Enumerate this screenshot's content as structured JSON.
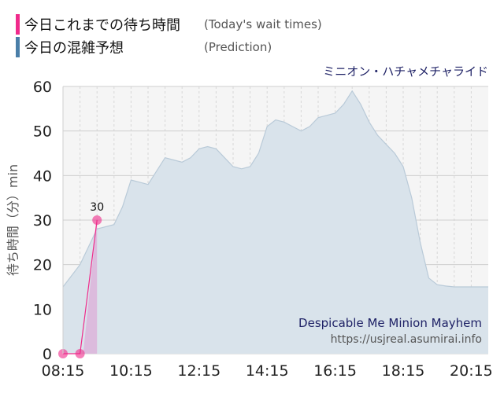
{
  "legend": {
    "today_label": "今日これまでの待ち時間",
    "today_sub": "(Today's wait times)",
    "pred_label": "今日の混雑予想",
    "pred_sub": "(Prediction)"
  },
  "attraction_name": "ミニオン・ハチャメチャライド",
  "footer": {
    "ride_name": "Despicable Me Minion Mayhem",
    "source_url": "https://usjreal.asumirai.info"
  },
  "colors": {
    "today": "#f02a8b",
    "prediction": "#4a7ea8",
    "prediction_fill": "#d9e3eb",
    "today_fill": "#dcb6dc",
    "plot_bg": "#f5f5f5"
  },
  "chart_data": {
    "type": "area",
    "xlabel": "",
    "ylabel": "待ち時間（分）min",
    "ylim": [
      0,
      60
    ],
    "yticks": [
      0,
      10,
      20,
      30,
      40,
      50,
      60
    ],
    "xlim": [
      "08:15",
      "20:45"
    ],
    "xticks": [
      "08:15",
      "10:15",
      "12:15",
      "14:15",
      "16:15",
      "18:15",
      "20:15"
    ],
    "grid": true,
    "series": [
      {
        "name": "今日の混雑予想",
        "x": [
          "08:15",
          "08:45",
          "09:15",
          "09:30",
          "09:45",
          "10:00",
          "10:15",
          "10:30",
          "10:45",
          "11:00",
          "11:15",
          "11:30",
          "11:45",
          "12:00",
          "12:15",
          "12:30",
          "12:45",
          "13:00",
          "13:15",
          "13:30",
          "13:45",
          "14:00",
          "14:15",
          "14:30",
          "14:45",
          "15:00",
          "15:15",
          "15:30",
          "15:45",
          "16:00",
          "16:15",
          "16:30",
          "16:45",
          "17:00",
          "17:15",
          "17:30",
          "17:45",
          "18:00",
          "18:15",
          "18:30",
          "18:45",
          "19:00",
          "19:15",
          "19:30",
          "19:45",
          "20:00",
          "20:15",
          "20:30",
          "20:45"
        ],
        "values": [
          15,
          20,
          28,
          28.5,
          29,
          33,
          39,
          38.5,
          38,
          41,
          44,
          43.5,
          43,
          44,
          46,
          46.5,
          46,
          44,
          42,
          41.5,
          42,
          45,
          51,
          52.5,
          52,
          51,
          50,
          51,
          53,
          53.5,
          54,
          56,
          59,
          56,
          52,
          49,
          47,
          45,
          42,
          35,
          25,
          17,
          15.5,
          15.2,
          15,
          15,
          15,
          15,
          15
        ]
      },
      {
        "name": "今日これまでの待ち時間",
        "x": [
          "08:15",
          "08:45",
          "09:15"
        ],
        "values": [
          0,
          0,
          30
        ],
        "data_labels": [
          "",
          "",
          "30"
        ]
      }
    ]
  }
}
